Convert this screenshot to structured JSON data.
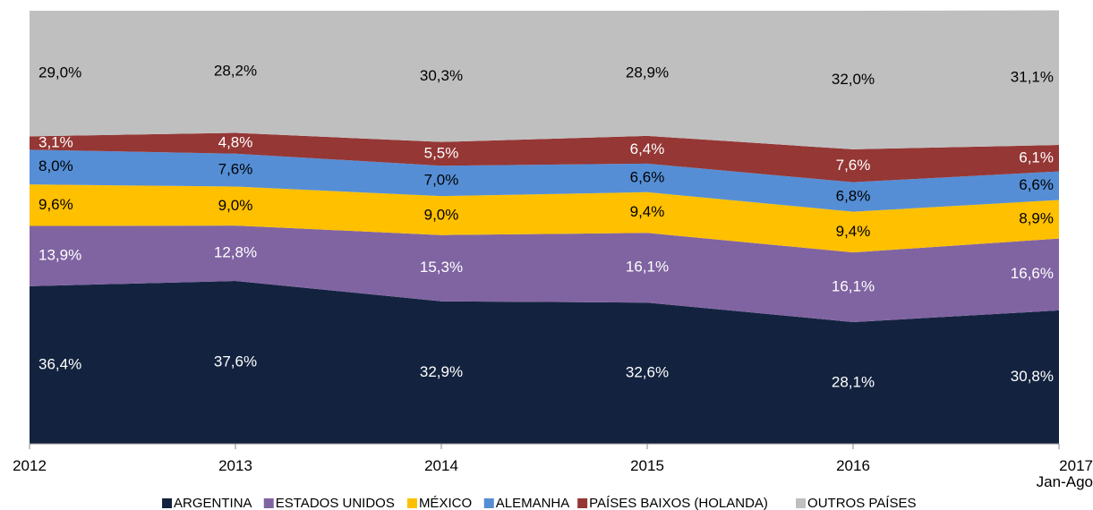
{
  "chart_data": {
    "type": "stacked_area",
    "categories": [
      "2012",
      "2013",
      "2014",
      "2015",
      "2016",
      "2017\nJan-Ago"
    ],
    "ylim": [
      0,
      100
    ],
    "series": [
      {
        "name": "ARGENTINA",
        "color": "#13233f",
        "values": [
          36.4,
          37.6,
          32.9,
          32.6,
          28.1,
          30.8
        ],
        "value_labels": [
          "36,4%",
          "37,6%",
          "32,9%",
          "32,6%",
          "28,1%",
          "30,8%"
        ]
      },
      {
        "name": "ESTADOS UNIDOS",
        "color": "#8064a2",
        "values": [
          13.9,
          12.8,
          15.3,
          16.1,
          16.1,
          16.6
        ],
        "value_labels": [
          "13,9%",
          "12,8%",
          "15,3%",
          "16,1%",
          "16,1%",
          "16,6%"
        ]
      },
      {
        "name": "MÉXICO",
        "color": "#ffc000",
        "values": [
          9.6,
          9.0,
          9.0,
          9.4,
          9.4,
          8.9
        ],
        "value_labels": [
          "9,6%",
          "9,0%",
          "9,0%",
          "9,4%",
          "9,4%",
          "8,9%"
        ]
      },
      {
        "name": "ALEMANHA",
        "color": "#558ed5",
        "values": [
          8.0,
          7.6,
          7.0,
          6.6,
          6.8,
          6.6
        ],
        "value_labels": [
          "8,0%",
          "7,6%",
          "7,0%",
          "6,6%",
          "6,8%",
          "6,6%"
        ]
      },
      {
        "name": "PAÍSES BAIXOS (HOLANDA)",
        "color": "#953735",
        "values": [
          3.1,
          4.8,
          5.5,
          6.4,
          7.6,
          6.1
        ],
        "value_labels": [
          "3,1%",
          "4,8%",
          "5,5%",
          "6,4%",
          "7,6%",
          "6,1%"
        ]
      },
      {
        "name": "OUTROS PAÍSES",
        "color": "#bfbfbf",
        "values": [
          29.0,
          28.2,
          30.3,
          28.9,
          32.0,
          31.1
        ],
        "value_labels": [
          "29,0%",
          "28,2%",
          "30,3%",
          "28,9%",
          "32,0%",
          "31,1%"
        ]
      }
    ]
  }
}
